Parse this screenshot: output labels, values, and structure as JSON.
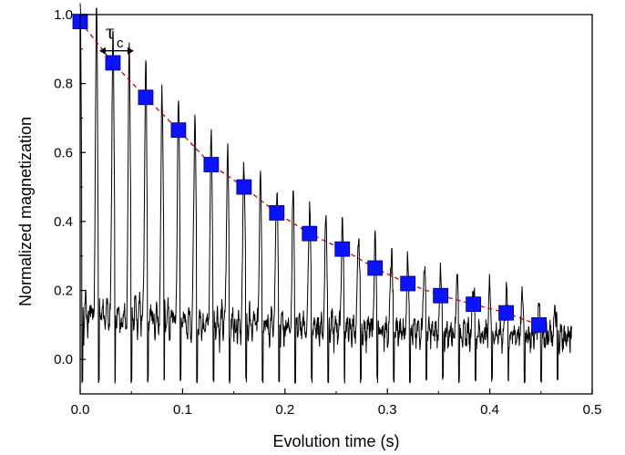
{
  "chart_data": {
    "type": "scatter",
    "xlabel": "Evolution time (s)",
    "ylabel": "Normalized magnetization",
    "xlim": [
      0.0,
      0.5
    ],
    "ylim": [
      -0.1,
      1.0
    ],
    "x_ticks": [
      "0.0",
      "0.1",
      "0.2",
      "0.3",
      "0.4",
      "0.5"
    ],
    "y_ticks": [
      "0.0",
      "0.2",
      "0.4",
      "0.6",
      "0.8",
      "1.0"
    ],
    "marker_color": "#0a12ff",
    "fit_color": "#cc0000",
    "signal_color": "#000000",
    "points": {
      "x": [
        0.0,
        0.032,
        0.064,
        0.096,
        0.128,
        0.16,
        0.192,
        0.224,
        0.256,
        0.288,
        0.32,
        0.352,
        0.384,
        0.416,
        0.448
      ],
      "y": [
        0.98,
        0.86,
        0.76,
        0.665,
        0.565,
        0.5,
        0.425,
        0.365,
        0.32,
        0.265,
        0.22,
        0.185,
        0.16,
        0.135,
        0.1
      ]
    },
    "signal": {
      "echo_times": [
        0.0,
        0.016,
        0.032,
        0.048,
        0.064,
        0.08,
        0.096,
        0.112,
        0.128,
        0.144,
        0.16,
        0.176,
        0.192,
        0.208,
        0.224,
        0.24,
        0.256,
        0.272,
        0.288,
        0.304,
        0.32,
        0.336,
        0.352,
        0.368,
        0.384,
        0.4,
        0.416,
        0.432,
        0.448,
        0.464
      ],
      "echo_peaks": [
        0.98,
        0.91,
        0.86,
        0.81,
        0.76,
        0.71,
        0.665,
        0.615,
        0.565,
        0.53,
        0.5,
        0.46,
        0.425,
        0.395,
        0.365,
        0.34,
        0.32,
        0.29,
        0.265,
        0.24,
        0.22,
        0.2,
        0.185,
        0.17,
        0.16,
        0.145,
        0.135,
        0.12,
        0.1,
        0.08
      ],
      "x_end": 0.48
    },
    "annotation": {
      "symbol": "τ",
      "subscript": "c"
    }
  }
}
